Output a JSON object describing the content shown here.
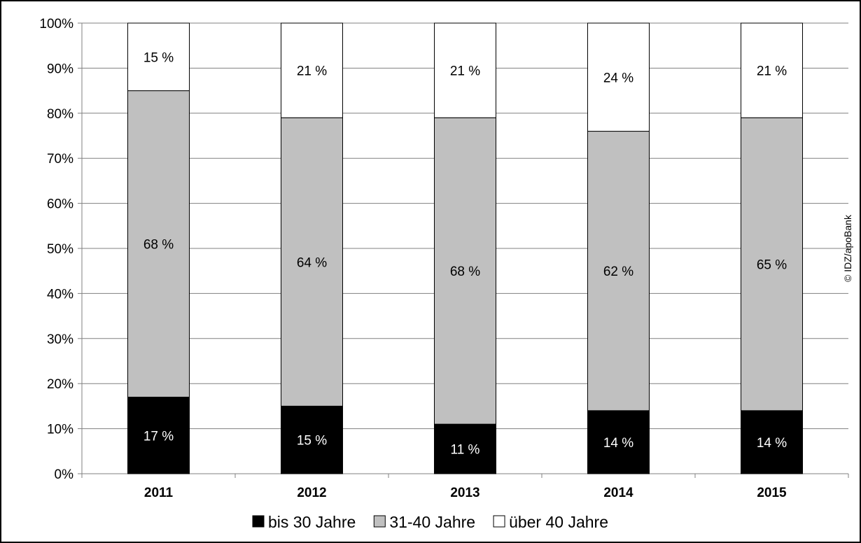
{
  "chart_data": {
    "type": "bar",
    "stacked": true,
    "categories": [
      "2011",
      "2012",
      "2013",
      "2014",
      "2015"
    ],
    "series": [
      {
        "name": "bis 30 Jahre",
        "color": "#000000",
        "label_color": "#ffffff",
        "values": [
          17,
          15,
          11,
          14,
          14
        ],
        "labels": [
          "17 %",
          "15 %",
          "11 %",
          "14 %",
          "14 %"
        ]
      },
      {
        "name": "31-40 Jahre",
        "color": "#c0c0c0",
        "label_color": "#000000",
        "values": [
          68,
          64,
          68,
          62,
          65
        ],
        "labels": [
          "68 %",
          "64 %",
          "68 %",
          "62 %",
          "65 %"
        ]
      },
      {
        "name": "über 40 Jahre",
        "color": "#ffffff",
        "label_color": "#000000",
        "values": [
          15,
          21,
          21,
          24,
          21
        ],
        "labels": [
          "15 %",
          "21 %",
          "21 %",
          "24 %",
          "21 %"
        ]
      }
    ],
    "ylim": [
      0,
      100
    ],
    "yticks": [
      "0%",
      "10%",
      "20%",
      "30%",
      "40%",
      "50%",
      "60%",
      "70%",
      "80%",
      "90%",
      "100%"
    ],
    "grid": true,
    "legend": "bottom"
  },
  "credit": "© IDZ/apoBank"
}
